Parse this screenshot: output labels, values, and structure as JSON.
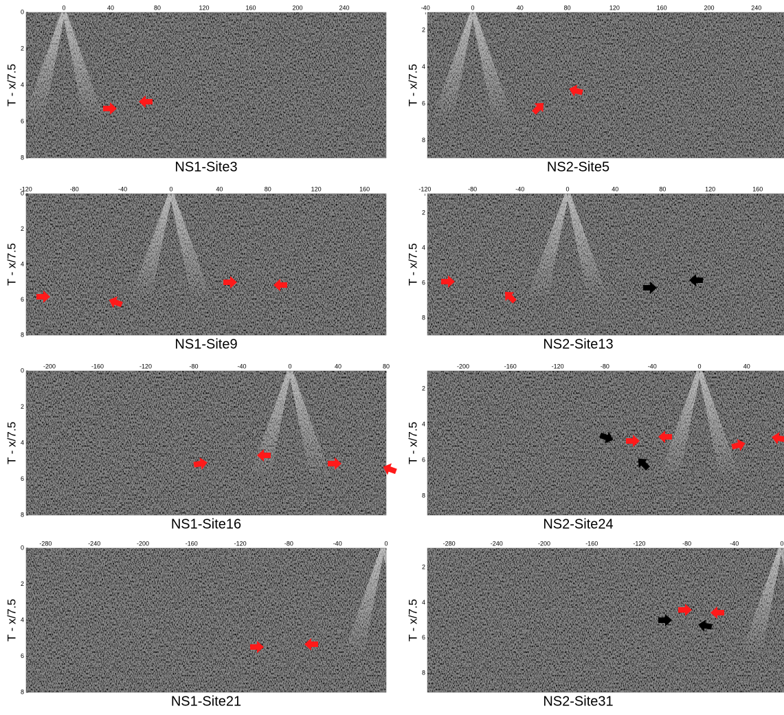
{
  "panels": [
    {
      "title": "NS1-Site3",
      "y_label": "T - x/7.5",
      "x_ticks": [
        0,
        40,
        80,
        120,
        160,
        200,
        240
      ],
      "y_ticks": [
        0,
        2,
        4,
        6,
        8
      ]
    },
    {
      "title": "NS2-Site5",
      "y_label": "T - x/7.5",
      "x_ticks": [
        -40,
        0,
        40,
        80,
        120,
        160,
        200,
        240
      ],
      "y_ticks": [
        2,
        4,
        6,
        8
      ]
    },
    {
      "title": "NS1-Site9",
      "y_label": "T - x/7.5",
      "x_ticks": [
        -120,
        -80,
        -40,
        0,
        40,
        80,
        120,
        160
      ],
      "y_ticks": [
        0,
        2,
        4,
        6,
        8
      ]
    },
    {
      "title": "NS2-Site13",
      "y_label": "T - x/7.5",
      "x_ticks": [
        -120,
        -80,
        -40,
        0,
        40,
        80,
        120,
        160
      ],
      "y_ticks": [
        2,
        4,
        6,
        8
      ]
    },
    {
      "title": "NS1-Site16",
      "y_label": "T - x/7.5",
      "x_ticks": [
        -200,
        -160,
        -120,
        -80,
        -40,
        0,
        40,
        80
      ],
      "y_ticks": [
        0,
        2,
        4,
        6,
        8
      ]
    },
    {
      "title": "NS2-Site24",
      "y_label": "T - x/7.5",
      "x_ticks": [
        -200,
        -160,
        -120,
        -80,
        -40,
        0,
        40
      ],
      "y_ticks": [
        2,
        4,
        6,
        8
      ]
    },
    {
      "title": "NS1-Site21",
      "y_label": "T - x/7.5",
      "x_ticks": [
        -280,
        -240,
        -200,
        -160,
        -120,
        -80,
        -40,
        0
      ],
      "y_ticks": [
        0,
        2,
        4,
        6,
        8
      ]
    },
    {
      "title": "NS2-Site31",
      "y_label": "T - x/7.5",
      "x_ticks": [
        -280,
        -240,
        -200,
        -160,
        -120,
        -80,
        -40,
        0
      ],
      "y_ticks": [
        2,
        4,
        6,
        8
      ]
    }
  ]
}
